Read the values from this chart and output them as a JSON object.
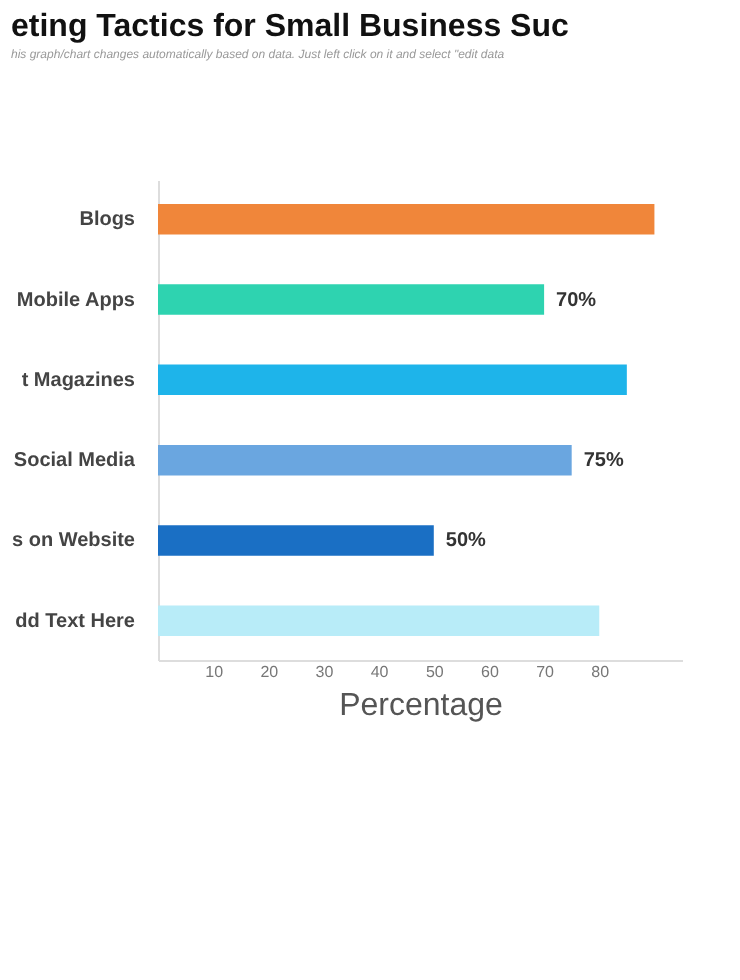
{
  "chart_data": {
    "type": "bar",
    "orientation": "horizontal",
    "title": "eting Tactics for Small Business Suc",
    "subtitle": "his graph/chart changes automatically based on data. Just left click on it and select \"edit data",
    "categories": [
      "Blogs",
      "Mobile Apps",
      "t Magazines",
      "Social Media",
      "s on Website",
      "dd Text Here"
    ],
    "values": [
      90,
      70,
      85,
      75,
      50,
      80
    ],
    "colors": [
      "#f0863a",
      "#2ed3b0",
      "#1eb4ea",
      "#6aa6e0",
      "#1a6fc4",
      "#b8ecf8"
    ],
    "value_labels": [
      null,
      "70%",
      null,
      "75%",
      "50%",
      null
    ],
    "xlabel": "Percentage",
    "xlim": [
      0,
      95
    ],
    "xticks": [
      10,
      20,
      30,
      40,
      50,
      60,
      70,
      80
    ],
    "grid": false
  }
}
